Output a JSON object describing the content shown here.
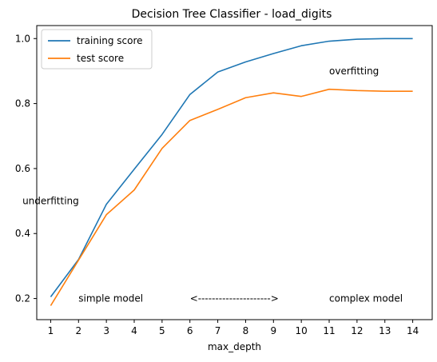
{
  "chart_data": {
    "type": "line",
    "title": "Decision Tree Classifier - load_digits",
    "xlabel": "max_depth",
    "ylabel": "",
    "x": [
      1,
      2,
      3,
      4,
      5,
      6,
      7,
      8,
      9,
      10,
      11,
      12,
      13,
      14
    ],
    "xlim": [
      0.5,
      14.7
    ],
    "ylim": [
      0.135,
      1.04
    ],
    "xticks": [
      "1",
      "2",
      "3",
      "4",
      "5",
      "6",
      "7",
      "8",
      "9",
      "10",
      "11",
      "12",
      "13",
      "14"
    ],
    "yticks": [
      "0.2",
      "0.4",
      "0.6",
      "0.8",
      "1.0"
    ],
    "ytick_values": [
      0.2,
      0.4,
      0.6,
      0.8,
      1.0
    ],
    "grid": false,
    "legend_position": "top-left",
    "series": [
      {
        "name": "training score",
        "color": "#1f77b4",
        "values": [
          0.205,
          0.32,
          0.49,
          0.598,
          0.705,
          0.828,
          0.897,
          0.928,
          0.954,
          0.978,
          0.992,
          0.998,
          1.0,
          1.0
        ]
      },
      {
        "name": "test score",
        "color": "#ff7f0e",
        "values": [
          0.178,
          0.318,
          0.458,
          0.534,
          0.662,
          0.748,
          0.782,
          0.818,
          0.833,
          0.822,
          0.844,
          0.84,
          0.838,
          0.838
        ]
      }
    ],
    "annotations": [
      {
        "text": "underfitting",
        "x": 1.0,
        "y": 0.5,
        "anchor": "middle"
      },
      {
        "text": "overfitting",
        "x": 11.0,
        "y": 0.9,
        "anchor": "start"
      },
      {
        "text": "simple model",
        "x": 2.0,
        "y": 0.2,
        "anchor": "start"
      },
      {
        "text": "<--------------------->",
        "x": 6.0,
        "y": 0.2,
        "anchor": "start"
      },
      {
        "text": "complex model",
        "x": 11.0,
        "y": 0.2,
        "anchor": "start"
      }
    ]
  }
}
